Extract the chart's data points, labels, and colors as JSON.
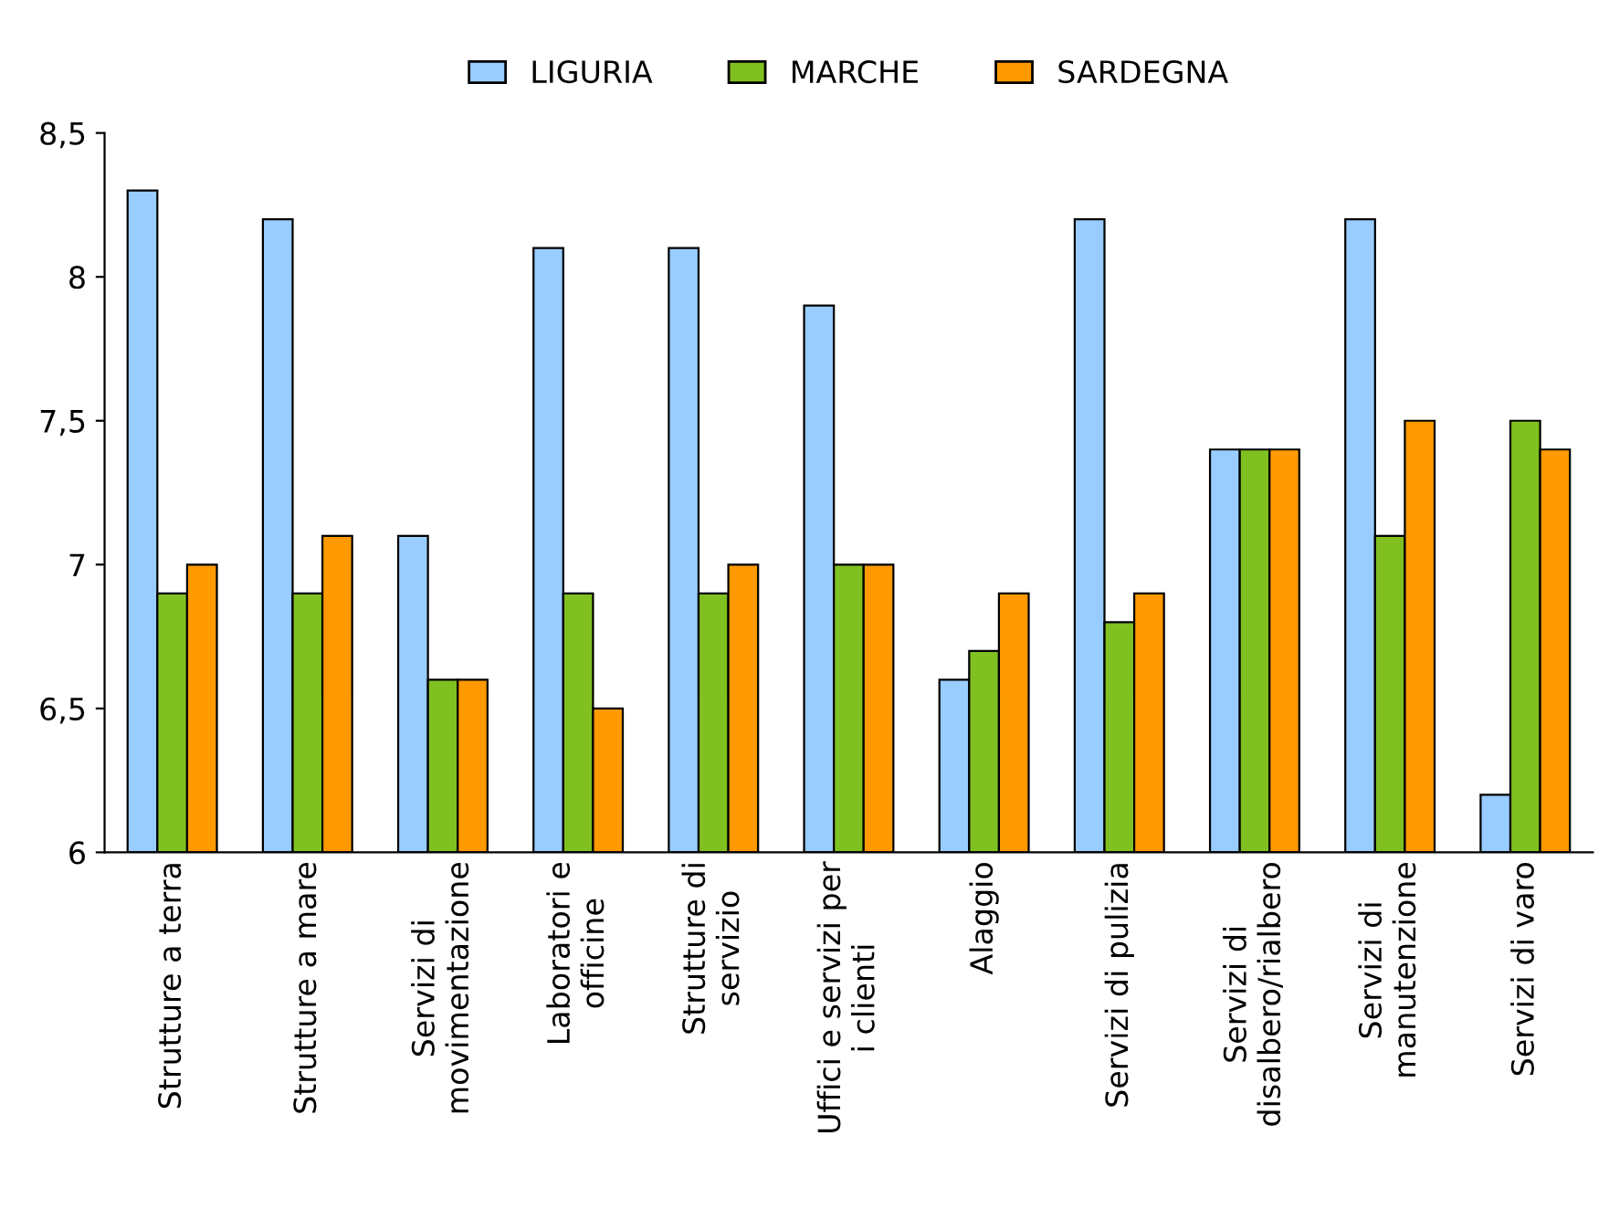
{
  "chart_data": {
    "type": "bar",
    "categories": [
      "Strutture a terra",
      "Strutture a mare",
      "Servizi di\nmovimentazione",
      "Laboratori e\nofficine",
      "Strutture di\nservizio",
      "Uffici e servizi per\ni clienti",
      "Alaggio",
      "Servizi di pulizia",
      "Servizi di\ndisalbero/rialbero",
      "Servizi di\nmanutenzione",
      "Servizi di varo"
    ],
    "series": [
      {
        "name": "LIGURIA",
        "color": "#99ccff",
        "values": [
          8.3,
          8.2,
          7.1,
          8.1,
          8.1,
          7.9,
          6.6,
          8.2,
          7.4,
          8.2,
          6.2
        ]
      },
      {
        "name": "MARCHE",
        "color": "#80c020",
        "values": [
          6.9,
          6.9,
          6.6,
          6.9,
          6.9,
          7.0,
          6.7,
          6.8,
          7.4,
          7.1,
          7.5
        ]
      },
      {
        "name": "SARDEGNA",
        "color": "#ff9900",
        "values": [
          7.0,
          7.1,
          6.6,
          6.5,
          7.0,
          7.0,
          6.9,
          6.9,
          7.4,
          7.5,
          7.4
        ]
      }
    ],
    "ylim": [
      6,
      8.5
    ],
    "yticks": [
      6,
      {
        "value": 6.5,
        "label": "6,5"
      },
      7,
      {
        "value": 7.5,
        "label": "7,5"
      },
      8,
      {
        "value": 8.5,
        "label": "8,5"
      }
    ],
    "grid": false,
    "legend": "top"
  }
}
